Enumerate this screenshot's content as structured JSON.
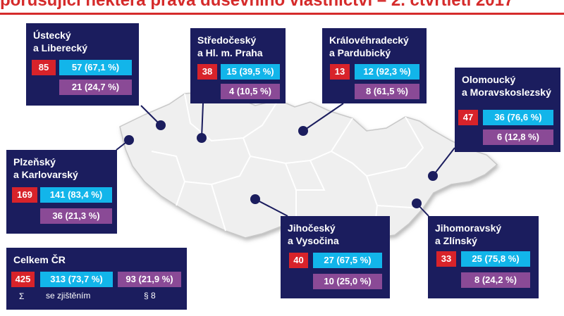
{
  "title": "porušující některá práva duševního vlastnictví – 2. čtvrtletí 2017",
  "colors": {
    "red": "#d8232a",
    "cyan": "#12b5ea",
    "purple": "#8a4a96",
    "navy": "#1b1d5e",
    "title": "#d52b2b"
  },
  "regions": [
    {
      "line1": "Ústecký",
      "line2": "a Liberecký",
      "total": "85",
      "found": "57 (67,1 %)",
      "par8": "21 (24,7 %)"
    },
    {
      "line1": "Středočeský",
      "line2": "a Hl. m. Praha",
      "total": "38",
      "found": "15 (39,5 %)",
      "par8": "4 (10,5 %)"
    },
    {
      "line1": "Královéhradecký",
      "line2": "a Pardubický",
      "total": "13",
      "found": "12 (92,3 %)",
      "par8": "8 (61,5 %)"
    },
    {
      "line1": "Olomoucký",
      "line2": "a Moravskoslezský",
      "total": "47",
      "found": "36 (76,6 %)",
      "par8": "6 (12,8 %)"
    },
    {
      "line1": "Plzeňský",
      "line2": "a Karlovarský",
      "total": "169",
      "found": "141 (83,4 %)",
      "par8": "36 (21,3 %)"
    },
    {
      "line1": "Jihočeský",
      "line2": "a Vysočina",
      "total": "40",
      "found": "27 (67,5 %)",
      "par8": "10 (25,0 %)"
    },
    {
      "line1": "Jihomoravský",
      "line2": "a Zlínský",
      "total": "33",
      "found": "25 (75,8 %)",
      "par8": "8 (24,2 %)"
    }
  ],
  "summary": {
    "label": "Celkem ČR",
    "total": "425",
    "found": "313 (73,7 %)",
    "par8": "93 (21,9 %)",
    "sigma": "Σ",
    "found_label": "se zjištěním",
    "par8_label": "§ 8"
  }
}
